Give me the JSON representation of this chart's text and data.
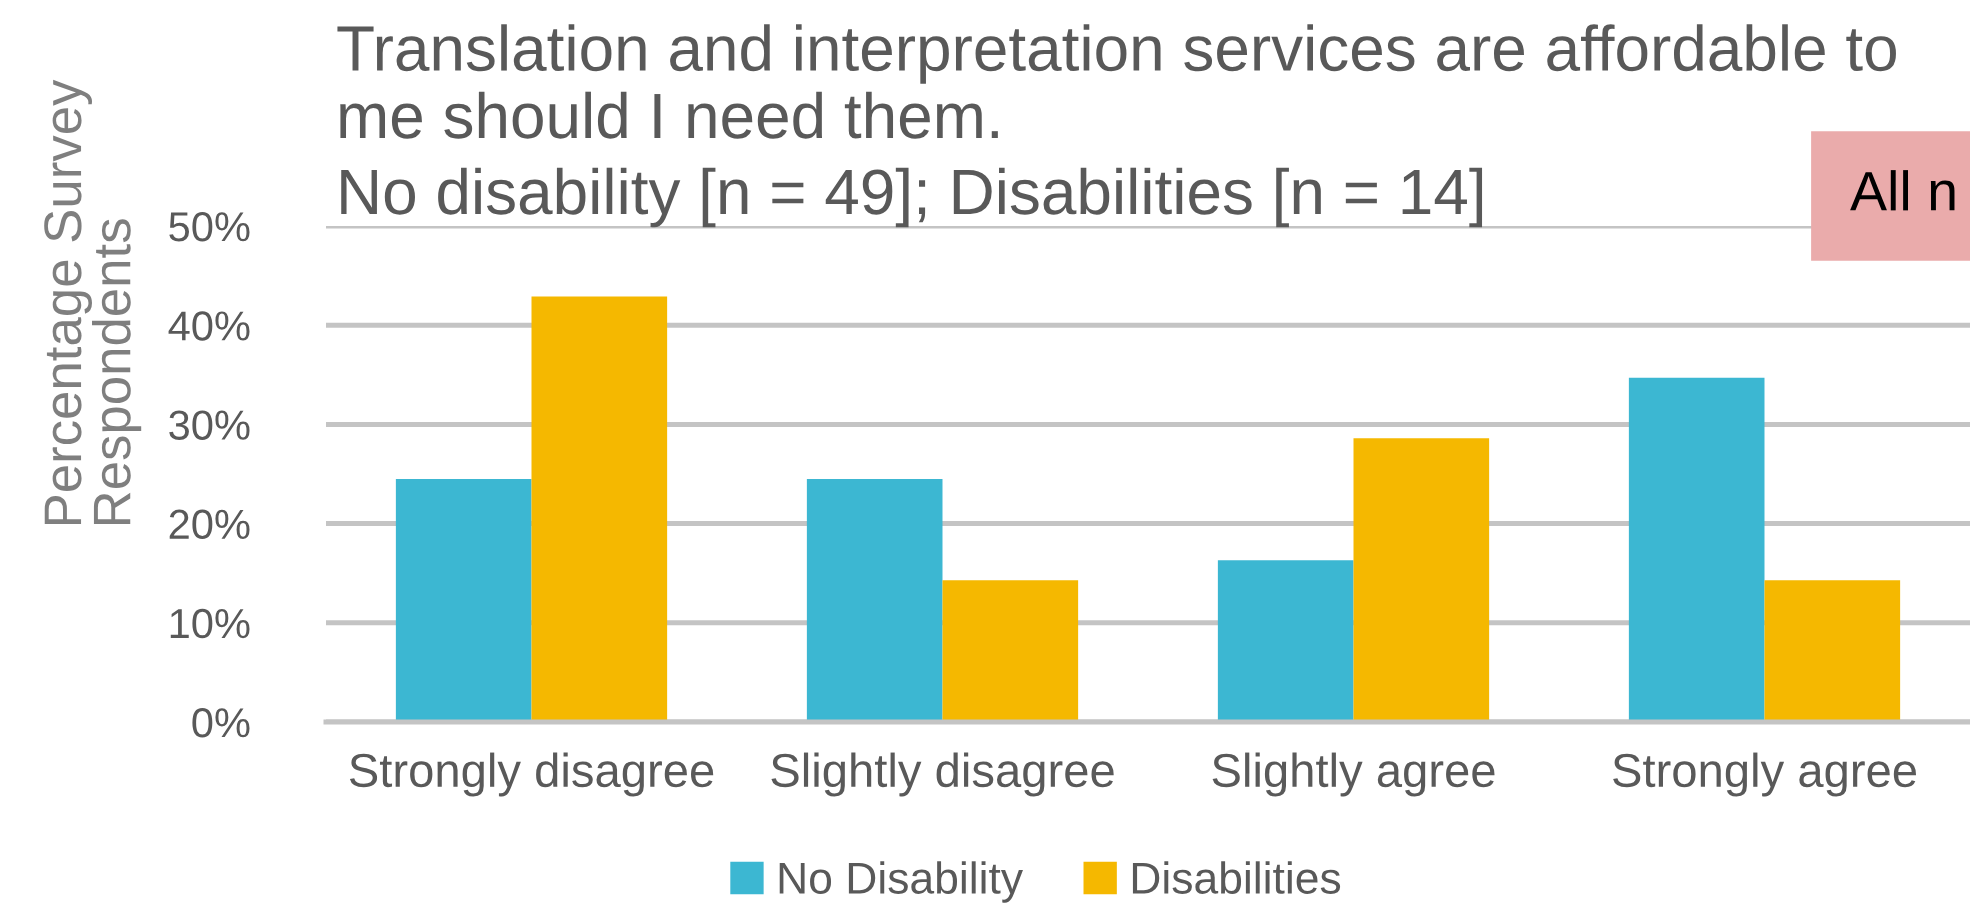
{
  "chart_data": {
    "type": "bar",
    "title": "Translation and interpretation services are affordable to\nme should I need them.",
    "subtitle": "No disability [n = 49]; Disabilities [n = 14]",
    "ylabel": "Percentage Survey\nRespondents",
    "categories": [
      "Strongly disagree",
      "Slightly disagree",
      "Slightly agree",
      "Strongly agree"
    ],
    "series": [
      {
        "name": "No Disability",
        "color": "#3cb7d2",
        "values": [
          24.5,
          24.5,
          16.3,
          34.7
        ]
      },
      {
        "name": "Disabilities",
        "color": "#f5b800",
        "values": [
          42.9,
          14.3,
          28.6,
          14.3
        ]
      }
    ],
    "ylim": [
      0,
      50
    ],
    "yticks": [
      {
        "value": 0,
        "label": "0%"
      },
      {
        "value": 10,
        "label": "10%"
      },
      {
        "value": 20,
        "label": "20%"
      },
      {
        "value": 30,
        "label": "30%"
      },
      {
        "value": 40,
        "label": "40%"
      },
      {
        "value": 50,
        "label": "50%"
      }
    ],
    "grid": "y",
    "legend": "bottom",
    "annotations": [
      "All n"
    ]
  }
}
